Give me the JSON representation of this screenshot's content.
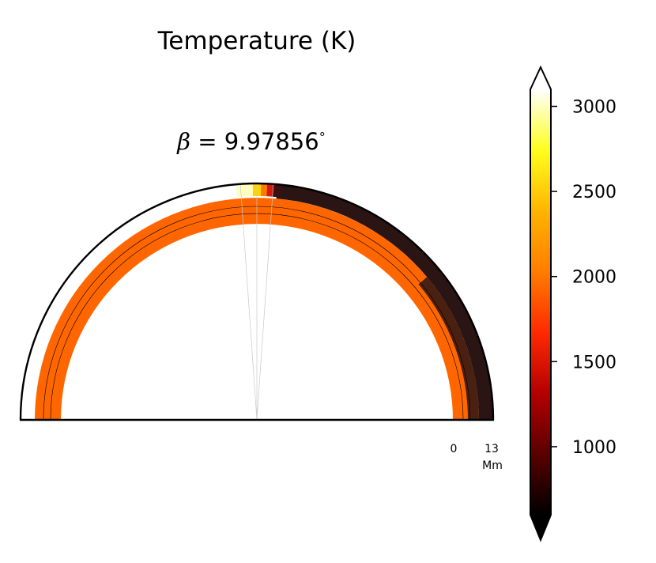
{
  "chart_data": {
    "type": "heatmap",
    "title": "Temperature (K)",
    "subtitle_prefix": "β = ",
    "subtitle_value": "9.97856",
    "subtitle_unit": "°",
    "colorbar": {
      "ticks": [
        1000,
        1500,
        2000,
        2500,
        3000
      ],
      "range": [
        600,
        3100
      ],
      "extend": "both",
      "colormap": [
        "#000000",
        "#5a0000",
        "#b40000",
        "#ff2a00",
        "#ff7d00",
        "#ffb400",
        "#ffff1e",
        "#ffffff"
      ]
    },
    "scale_bar": {
      "start_label": "0",
      "end_label": "13",
      "unit_label": "Mm"
    },
    "cool_layer_color": "#2a1414",
    "bulk_color": "#ff6600",
    "hot_spot_colors": [
      "#ffffc0",
      "#ffd400",
      "#ff7a00",
      "#d41a0e",
      "#3a1010"
    ]
  }
}
